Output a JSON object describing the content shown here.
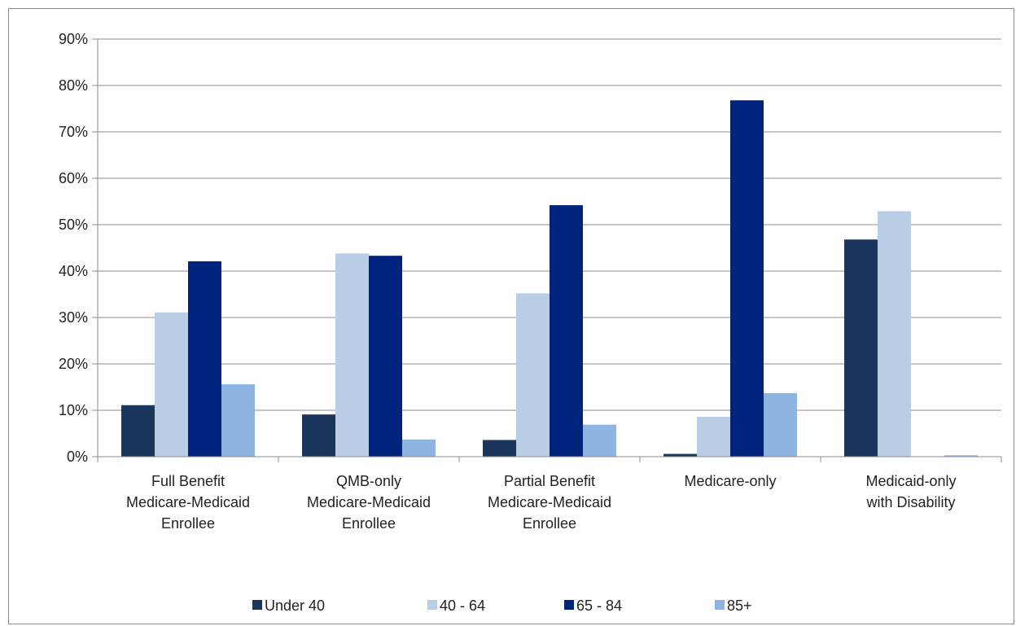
{
  "chart_data": {
    "type": "bar",
    "title": "",
    "xlabel": "",
    "ylabel": "",
    "ylim": [
      0,
      90
    ],
    "y_ticks": [
      "0%",
      "10%",
      "20%",
      "30%",
      "40%",
      "50%",
      "60%",
      "70%",
      "80%",
      "90%"
    ],
    "y_tick_values": [
      0,
      10,
      20,
      30,
      40,
      50,
      60,
      70,
      80,
      90
    ],
    "grid": true,
    "legend_position": "bottom",
    "categories": [
      [
        "Full Benefit",
        "Medicare-Medicaid",
        "Enrollee"
      ],
      [
        "QMB-only",
        "Medicare-Medicaid",
        "Enrollee"
      ],
      [
        "Partial Benefit",
        "Medicare-Medicaid",
        "Enrollee"
      ],
      [
        "Medicare-only"
      ],
      [
        "Medicaid-only",
        "with Disability"
      ]
    ],
    "series": [
      {
        "name": "Under 40",
        "color": "#1b365d",
        "values": [
          11.1,
          9.1,
          3.6,
          0.6,
          46.8
        ]
      },
      {
        "name": "40 - 64",
        "color": "#b9cde5",
        "values": [
          31.1,
          43.8,
          35.2,
          8.6,
          52.9
        ]
      },
      {
        "name": "65 - 84",
        "color": "#00247d",
        "values": [
          42.1,
          43.3,
          54.2,
          76.8,
          0.0
        ]
      },
      {
        "name": "85+",
        "color": "#8eb4e3",
        "values": [
          15.6,
          3.7,
          6.9,
          13.7,
          0.3
        ]
      }
    ]
  }
}
